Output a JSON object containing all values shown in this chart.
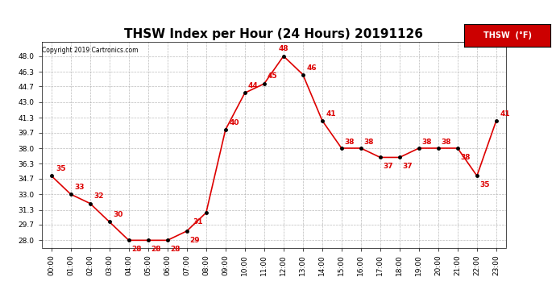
{
  "title": "THSW Index per Hour (24 Hours) 20191126",
  "copyright": "Copyright 2019 Cartronics.com",
  "legend_label": "THSW  (°F)",
  "hours": [
    0,
    1,
    2,
    3,
    4,
    5,
    6,
    7,
    8,
    9,
    10,
    11,
    12,
    13,
    14,
    15,
    16,
    17,
    18,
    19,
    20,
    21,
    22,
    23
  ],
  "values": [
    35,
    33,
    32,
    30,
    28,
    28,
    28,
    29,
    31,
    40,
    44,
    45,
    48,
    46,
    41,
    38,
    38,
    37,
    37,
    38,
    38,
    38,
    35,
    41
  ],
  "x_labels": [
    "00:00",
    "01:00",
    "02:00",
    "03:00",
    "04:00",
    "05:00",
    "06:00",
    "07:00",
    "08:00",
    "09:00",
    "10:00",
    "11:00",
    "12:00",
    "13:00",
    "14:00",
    "15:00",
    "16:00",
    "17:00",
    "18:00",
    "19:00",
    "20:00",
    "21:00",
    "22:00",
    "23:00"
  ],
  "y_ticks": [
    28.0,
    29.7,
    31.3,
    33.0,
    34.7,
    36.3,
    38.0,
    39.7,
    41.3,
    43.0,
    44.7,
    46.3,
    48.0
  ],
  "ylim": [
    27.2,
    49.5
  ],
  "line_color": "#DD0000",
  "marker_color": "#000000",
  "label_color": "#DD0000",
  "background_color": "#FFFFFF",
  "grid_color": "#AAAAAA",
  "title_fontsize": 11,
  "label_fontsize": 6.5,
  "axis_fontsize": 6.5,
  "legend_bg": "#CC0000",
  "legend_fg": "#FFFFFF",
  "label_offsets": {
    "0": [
      0.25,
      0.4,
      "left",
      "bottom"
    ],
    "1": [
      0.2,
      0.4,
      "left",
      "bottom"
    ],
    "2": [
      0.2,
      0.4,
      "left",
      "bottom"
    ],
    "3": [
      0.2,
      0.4,
      "left",
      "bottom"
    ],
    "4": [
      0.15,
      -0.6,
      "left",
      "top"
    ],
    "5": [
      0.15,
      -0.6,
      "left",
      "top"
    ],
    "6": [
      0.15,
      -0.6,
      "left",
      "top"
    ],
    "7": [
      0.15,
      -0.6,
      "left",
      "top"
    ],
    "8": [
      -0.15,
      -0.6,
      "right",
      "top"
    ],
    "9": [
      0.2,
      0.4,
      "left",
      "bottom"
    ],
    "10": [
      0.15,
      0.4,
      "left",
      "bottom"
    ],
    "11": [
      0.15,
      0.4,
      "left",
      "bottom"
    ],
    "12": [
      0.0,
      0.4,
      "center",
      "bottom"
    ],
    "13": [
      0.2,
      0.3,
      "left",
      "bottom"
    ],
    "14": [
      0.2,
      0.3,
      "left",
      "bottom"
    ],
    "15": [
      0.15,
      0.3,
      "left",
      "bottom"
    ],
    "16": [
      0.15,
      0.3,
      "left",
      "bottom"
    ],
    "17": [
      0.15,
      -0.6,
      "left",
      "top"
    ],
    "18": [
      0.15,
      -0.6,
      "left",
      "top"
    ],
    "19": [
      0.15,
      0.3,
      "left",
      "bottom"
    ],
    "20": [
      0.15,
      0.3,
      "left",
      "bottom"
    ],
    "21": [
      0.15,
      -0.6,
      "left",
      "top"
    ],
    "22": [
      0.15,
      -0.6,
      "left",
      "top"
    ],
    "23": [
      0.2,
      0.3,
      "left",
      "bottom"
    ]
  }
}
